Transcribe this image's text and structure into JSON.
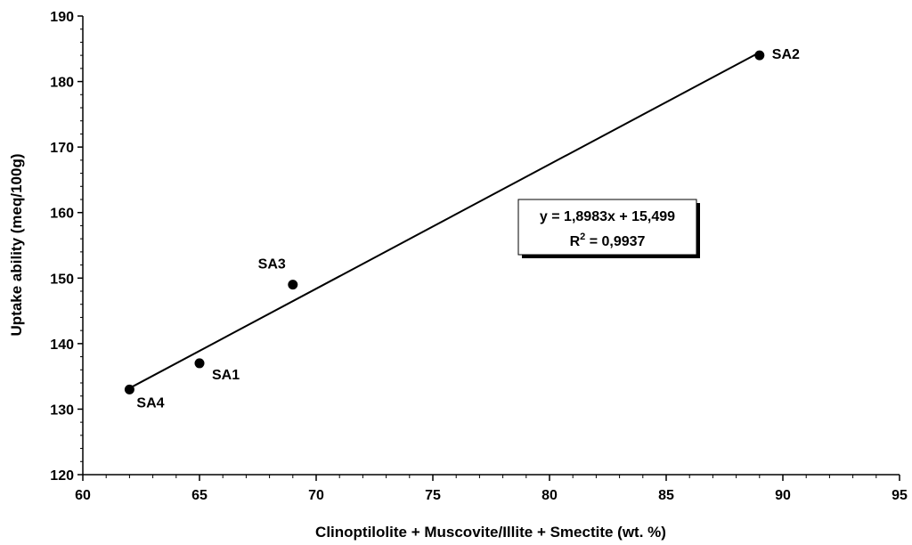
{
  "chart_data": {
    "type": "scatter",
    "xlabel": "Clinoptilolite + Muscovite/Illite + Smectite (wt. %)",
    "ylabel": "Uptake ability (meq/100g)",
    "xlim": [
      60,
      95
    ],
    "ylim": [
      120,
      190
    ],
    "x_ticks": [
      "60",
      "65",
      "70",
      "75",
      "80",
      "85",
      "90",
      "95"
    ],
    "y_ticks": [
      "120",
      "130",
      "140",
      "150",
      "160",
      "170",
      "180",
      "190"
    ],
    "grid": false,
    "points": [
      {
        "label": "SA1",
        "x": 65,
        "y": 137
      },
      {
        "label": "SA2",
        "x": 89,
        "y": 184
      },
      {
        "label": "SA3",
        "x": 69,
        "y": 149
      },
      {
        "label": "SA4",
        "x": 62,
        "y": 133
      }
    ],
    "trendline": {
      "type": "linear",
      "x_range": [
        62,
        89
      ],
      "slope": 1.8983,
      "intercept": 15.499,
      "equation": "y = 1,8983x + 15,499",
      "r2_prefix": "R",
      "r2_superscript": "2",
      "r2_value": " = 0,9937"
    }
  }
}
